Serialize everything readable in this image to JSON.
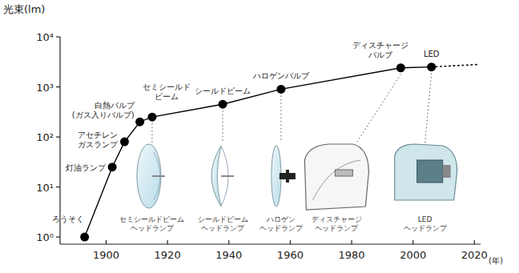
{
  "chart_data": {
    "type": "line",
    "y_label": "光束(lm)",
    "x_label": "(年)",
    "log": "y",
    "grid": false,
    "series": [
      {
        "x": [
          1893,
          1902,
          1906,
          1911,
          1915,
          1938,
          1957,
          1996,
          2006
        ],
        "values": [
          1,
          25,
          80,
          200,
          250,
          450,
          900,
          2400,
          2500
        ],
        "color": "#000000",
        "marker": "circle",
        "line_style": "solid",
        "labels": [
          "ろうそく",
          "灯油ランプ",
          "アセチレン\nガスランプ",
          "白熱バルブ\n(ガス入りバルブ)",
          "セミシールド\nビーム",
          "シールドビーム",
          "ハロゲンバルブ",
          "ディスチャージ\nバルブ",
          "LED"
        ],
        "lamp_captions": [
          null,
          null,
          null,
          null,
          "セミシールドビーム\nヘッドランプ",
          "シールドビーム\nヘッドランプ",
          "ハロゲン\nヘッドランプ",
          "ディスチャージ\nヘッドランプ",
          "LED\nヘッドランプ"
        ]
      },
      {
        "x": [
          2006,
          2021
        ],
        "values": [
          2500,
          2800
        ],
        "color": "#000000",
        "marker": "none",
        "line_style": "dotted"
      }
    ],
    "xlim": [
      1885,
      2022
    ],
    "xticks": [
      1900,
      1920,
      1940,
      1960,
      1980,
      2000,
      2020
    ],
    "ylim": [
      0.72,
      10000
    ],
    "yticks": [
      {
        "value": 1,
        "label": "10⁰"
      },
      {
        "value": 10,
        "label": "10¹"
      },
      {
        "value": 100,
        "label": "10²"
      },
      {
        "value": 1000,
        "label": "10³"
      },
      {
        "value": 10000,
        "label": "10⁴"
      }
    ]
  }
}
